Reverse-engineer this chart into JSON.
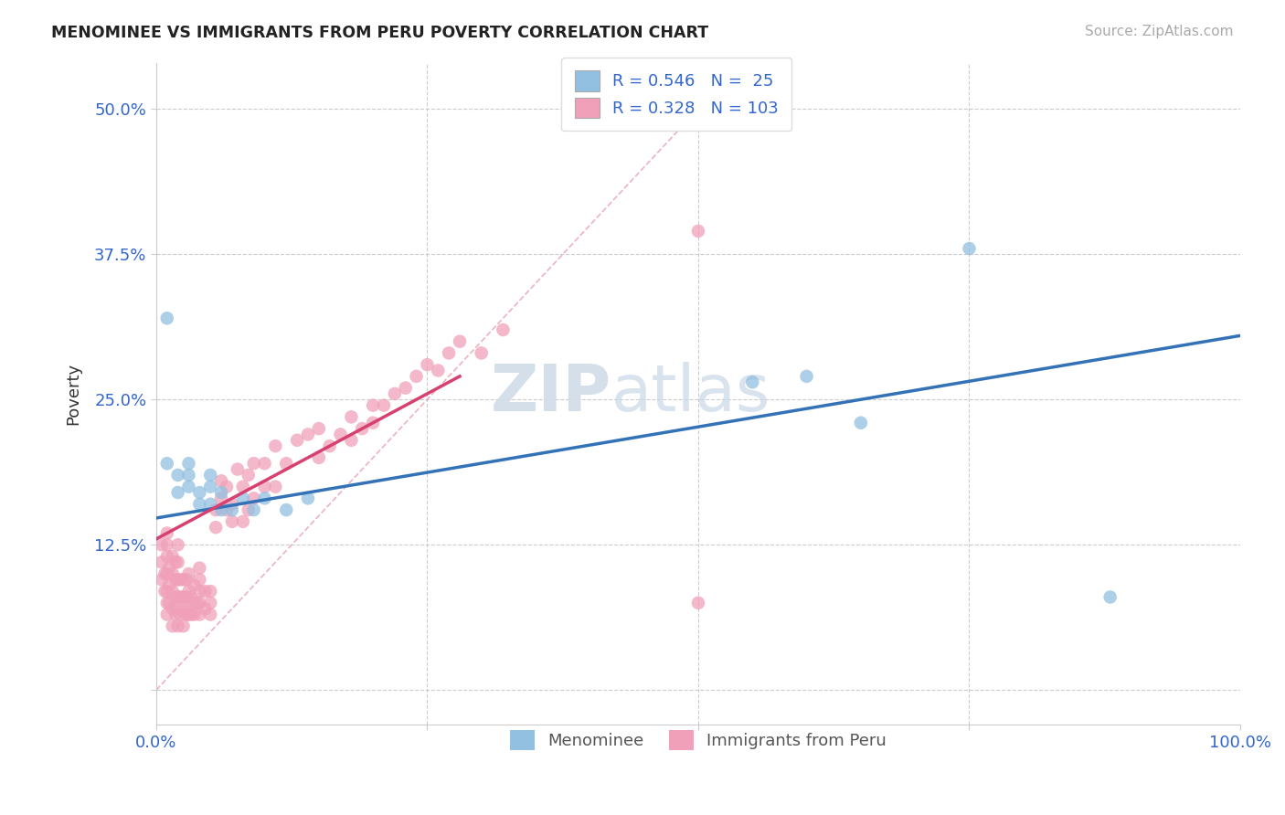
{
  "title": "MENOMINEE VS IMMIGRANTS FROM PERU POVERTY CORRELATION CHART",
  "source_text": "Source: ZipAtlas.com",
  "ylabel": "Poverty",
  "xlim": [
    0.0,
    1.0
  ],
  "ylim": [
    -0.03,
    0.54
  ],
  "xticks": [
    0.0,
    0.25,
    0.5,
    0.75,
    1.0
  ],
  "xticklabels": [
    "0.0%",
    "",
    "",
    "",
    "100.0%"
  ],
  "yticks": [
    0.0,
    0.125,
    0.25,
    0.375,
    0.5
  ],
  "yticklabels": [
    "",
    "12.5%",
    "25.0%",
    "37.5%",
    "50.0%"
  ],
  "grid_color": "#cccccc",
  "background_color": "#ffffff",
  "watermark_zip": "ZIP",
  "watermark_atlas": "atlas",
  "menominee_color": "#92c0e0",
  "peru_color": "#f0a0b8",
  "menominee_line_color": "#3472b8",
  "peru_line_color": "#d84070",
  "legend_R1": "0.546",
  "legend_N1": "25",
  "legend_R2": "0.328",
  "legend_N2": "103",
  "legend_label1": "Menominee",
  "legend_label2": "Immigrants from Peru",
  "menominee_x": [
    0.01,
    0.01,
    0.02,
    0.02,
    0.03,
    0.03,
    0.03,
    0.04,
    0.04,
    0.05,
    0.05,
    0.05,
    0.06,
    0.06,
    0.07,
    0.08,
    0.09,
    0.1,
    0.12,
    0.14,
    0.55,
    0.6,
    0.65,
    0.75,
    0.88
  ],
  "menominee_y": [
    0.32,
    0.195,
    0.185,
    0.17,
    0.175,
    0.185,
    0.195,
    0.16,
    0.17,
    0.16,
    0.175,
    0.185,
    0.155,
    0.17,
    0.155,
    0.165,
    0.155,
    0.165,
    0.155,
    0.165,
    0.265,
    0.27,
    0.23,
    0.38,
    0.08
  ],
  "peru_x": [
    0.005,
    0.005,
    0.005,
    0.008,
    0.008,
    0.01,
    0.01,
    0.01,
    0.01,
    0.01,
    0.01,
    0.01,
    0.012,
    0.012,
    0.012,
    0.015,
    0.015,
    0.015,
    0.015,
    0.015,
    0.018,
    0.018,
    0.018,
    0.018,
    0.02,
    0.02,
    0.02,
    0.02,
    0.02,
    0.02,
    0.022,
    0.022,
    0.022,
    0.025,
    0.025,
    0.025,
    0.025,
    0.028,
    0.028,
    0.028,
    0.03,
    0.03,
    0.03,
    0.03,
    0.032,
    0.032,
    0.035,
    0.035,
    0.035,
    0.038,
    0.04,
    0.04,
    0.04,
    0.04,
    0.04,
    0.045,
    0.045,
    0.05,
    0.05,
    0.05,
    0.055,
    0.055,
    0.06,
    0.06,
    0.065,
    0.065,
    0.07,
    0.07,
    0.075,
    0.08,
    0.08,
    0.085,
    0.085,
    0.09,
    0.09,
    0.1,
    0.1,
    0.11,
    0.11,
    0.12,
    0.13,
    0.14,
    0.15,
    0.15,
    0.16,
    0.17,
    0.18,
    0.18,
    0.19,
    0.2,
    0.2,
    0.21,
    0.22,
    0.23,
    0.24,
    0.25,
    0.26,
    0.27,
    0.28,
    0.3,
    0.32,
    0.5,
    0.5
  ],
  "peru_y": [
    0.095,
    0.11,
    0.125,
    0.085,
    0.1,
    0.065,
    0.075,
    0.085,
    0.1,
    0.115,
    0.125,
    0.135,
    0.075,
    0.09,
    0.105,
    0.055,
    0.07,
    0.085,
    0.1,
    0.115,
    0.065,
    0.08,
    0.095,
    0.11,
    0.055,
    0.07,
    0.08,
    0.095,
    0.11,
    0.125,
    0.065,
    0.08,
    0.095,
    0.055,
    0.07,
    0.08,
    0.095,
    0.065,
    0.08,
    0.095,
    0.065,
    0.075,
    0.085,
    0.1,
    0.065,
    0.08,
    0.065,
    0.075,
    0.09,
    0.075,
    0.065,
    0.075,
    0.085,
    0.095,
    0.105,
    0.07,
    0.085,
    0.065,
    0.075,
    0.085,
    0.14,
    0.155,
    0.165,
    0.18,
    0.155,
    0.175,
    0.145,
    0.16,
    0.19,
    0.145,
    0.175,
    0.155,
    0.185,
    0.165,
    0.195,
    0.175,
    0.195,
    0.175,
    0.21,
    0.195,
    0.215,
    0.22,
    0.2,
    0.225,
    0.21,
    0.22,
    0.215,
    0.235,
    0.225,
    0.23,
    0.245,
    0.245,
    0.255,
    0.26,
    0.27,
    0.28,
    0.275,
    0.29,
    0.3,
    0.29,
    0.31,
    0.075,
    0.395
  ],
  "blue_line_x": [
    0.0,
    1.0
  ],
  "blue_line_y": [
    0.148,
    0.305
  ],
  "pink_line_x": [
    0.0,
    0.28
  ],
  "pink_line_y": [
    0.13,
    0.27
  ],
  "diag_line_x": [
    0.0,
    0.54
  ],
  "diag_line_y": [
    0.0,
    0.54
  ]
}
